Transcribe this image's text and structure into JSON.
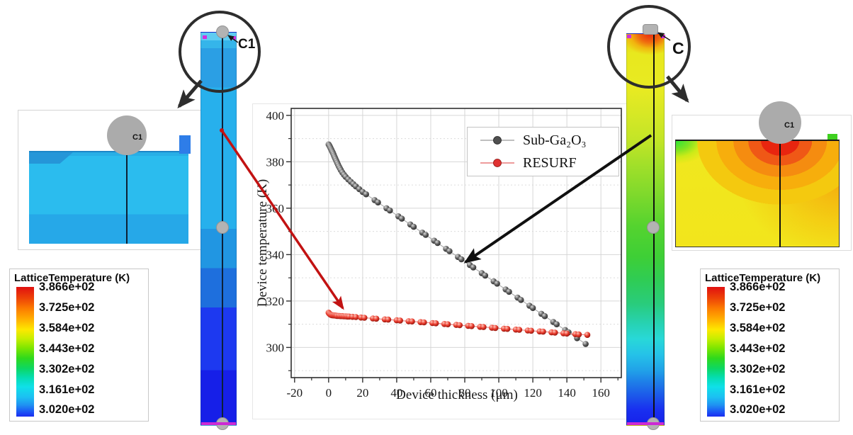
{
  "figure": {
    "left_device": {
      "zoom_label": "C1",
      "inset_contact_label": "C1"
    },
    "right_device": {
      "zoom_label": "C",
      "inset_contact_label": "C1"
    }
  },
  "colorbar": {
    "title": "LatticeTemperature (K)",
    "values": [
      "3.866e+02",
      "3.725e+02",
      "3.584e+02",
      "3.443e+02",
      "3.302e+02",
      "3.161e+02",
      "3.020e+02"
    ],
    "gradient_top_to_bottom": [
      "#e01010",
      "#fc7e00",
      "#fde800",
      "#2fd91c",
      "#05ddb2",
      "#1cc0f2",
      "#1b2df0"
    ]
  },
  "chart_data": {
    "type": "scatter",
    "title": "",
    "xlabel": "Device thickness (μm)",
    "ylabel": "Device temperature (K)",
    "xlim": [
      -22,
      172
    ],
    "ylim": [
      287,
      403
    ],
    "xticks": [
      -20,
      0,
      20,
      40,
      60,
      80,
      100,
      120,
      140,
      160
    ],
    "yticks": [
      300,
      320,
      340,
      360,
      380,
      400
    ],
    "grid": true,
    "legend_position": "top-right",
    "series": [
      {
        "name": "Sub-Ga₂O₃",
        "color": "#4f4f4f",
        "line_color": "#aaaaaa",
        "marker_gradient": [
          "#d9d9d9",
          "#5f5f5f",
          "#1f1f1f"
        ],
        "points": [
          [
            0,
            387.5
          ],
          [
            0.4,
            387
          ],
          [
            0.8,
            386.4
          ],
          [
            1.2,
            385.8
          ],
          [
            1.6,
            385.2
          ],
          [
            2,
            384.6
          ],
          [
            2.4,
            384
          ],
          [
            2.8,
            383.3
          ],
          [
            3.2,
            382.6
          ],
          [
            3.6,
            381.9
          ],
          [
            4,
            381.2
          ],
          [
            4.5,
            380.4
          ],
          [
            5,
            379.6
          ],
          [
            5.5,
            378.8
          ],
          [
            6,
            378
          ],
          [
            6.6,
            377.2
          ],
          [
            7.2,
            376.4
          ],
          [
            8,
            375.4
          ],
          [
            9,
            374.4
          ],
          [
            10,
            373.5
          ],
          [
            11.5,
            372.4
          ],
          [
            13,
            371.4
          ],
          [
            14.5,
            370.4
          ],
          [
            16,
            369.4
          ],
          [
            18,
            368.2
          ],
          [
            20,
            367
          ],
          [
            22,
            366
          ],
          [
            27,
            363.5
          ],
          [
            29,
            362.5
          ],
          [
            34,
            360
          ],
          [
            36,
            359
          ],
          [
            41,
            356.5
          ],
          [
            43,
            355.5
          ],
          [
            48,
            353
          ],
          [
            50,
            352
          ],
          [
            55,
            349.5
          ],
          [
            57,
            348.5
          ],
          [
            62,
            346
          ],
          [
            64,
            345
          ],
          [
            69,
            342.5
          ],
          [
            71,
            341.5
          ],
          [
            76,
            339
          ],
          [
            78,
            338
          ],
          [
            83,
            335.5
          ],
          [
            85,
            334.5
          ],
          [
            90,
            332
          ],
          [
            92,
            331
          ],
          [
            97,
            328.5
          ],
          [
            99,
            327.5
          ],
          [
            104,
            325
          ],
          [
            106,
            324
          ],
          [
            111,
            321.5
          ],
          [
            113,
            320.5
          ],
          [
            118,
            318
          ],
          [
            120,
            317
          ],
          [
            125,
            314.5
          ],
          [
            127,
            313.5
          ],
          [
            132,
            311
          ],
          [
            134,
            310
          ],
          [
            139,
            307.5
          ],
          [
            141,
            306.5
          ],
          [
            146,
            304
          ],
          [
            151,
            301.5
          ]
        ]
      },
      {
        "name": "RESURF",
        "color": "#e03131",
        "line_color": "#e87a7a",
        "marker_gradient": [
          "#ffc9bd",
          "#e8392b",
          "#801008"
        ],
        "points": [
          [
            0,
            315
          ],
          [
            0.4,
            314.6
          ],
          [
            0.8,
            314.3
          ],
          [
            1.2,
            314.1
          ],
          [
            1.6,
            314
          ],
          [
            2,
            313.9
          ],
          [
            2.5,
            313.9
          ],
          [
            3,
            313.8
          ],
          [
            3.5,
            313.8
          ],
          [
            4,
            313.7
          ],
          [
            4.5,
            313.7
          ],
          [
            5,
            313.6
          ],
          [
            6,
            313.6
          ],
          [
            7,
            313.5
          ],
          [
            8,
            313.5
          ],
          [
            9,
            313.4
          ],
          [
            10,
            313.4
          ],
          [
            11,
            313.3
          ],
          [
            12,
            313.3
          ],
          [
            14,
            313.2
          ],
          [
            16,
            313.1
          ],
          [
            19,
            312.9
          ],
          [
            21,
            312.8
          ],
          [
            26,
            312.5
          ],
          [
            28,
            312.4
          ],
          [
            33,
            312.1
          ],
          [
            35,
            312
          ],
          [
            40,
            311.7
          ],
          [
            42,
            311.6
          ],
          [
            47,
            311.3
          ],
          [
            49,
            311.2
          ],
          [
            54,
            310.9
          ],
          [
            56,
            310.8
          ],
          [
            61,
            310.5
          ],
          [
            63,
            310.4
          ],
          [
            68,
            310.1
          ],
          [
            70,
            310
          ],
          [
            75,
            309.7
          ],
          [
            77,
            309.6
          ],
          [
            82,
            309.3
          ],
          [
            84,
            309.2
          ],
          [
            89,
            308.9
          ],
          [
            91,
            308.8
          ],
          [
            96,
            308.5
          ],
          [
            98,
            308.4
          ],
          [
            103,
            308.1
          ],
          [
            105,
            308
          ],
          [
            110,
            307.7
          ],
          [
            112,
            307.6
          ],
          [
            117,
            307.3
          ],
          [
            119,
            307.2
          ],
          [
            124,
            306.9
          ],
          [
            126,
            306.8
          ],
          [
            131,
            306.5
          ],
          [
            133,
            306.4
          ],
          [
            138,
            306.1
          ],
          [
            140,
            306
          ],
          [
            145,
            305.7
          ],
          [
            147,
            305.6
          ],
          [
            152,
            305.4
          ]
        ]
      }
    ]
  }
}
